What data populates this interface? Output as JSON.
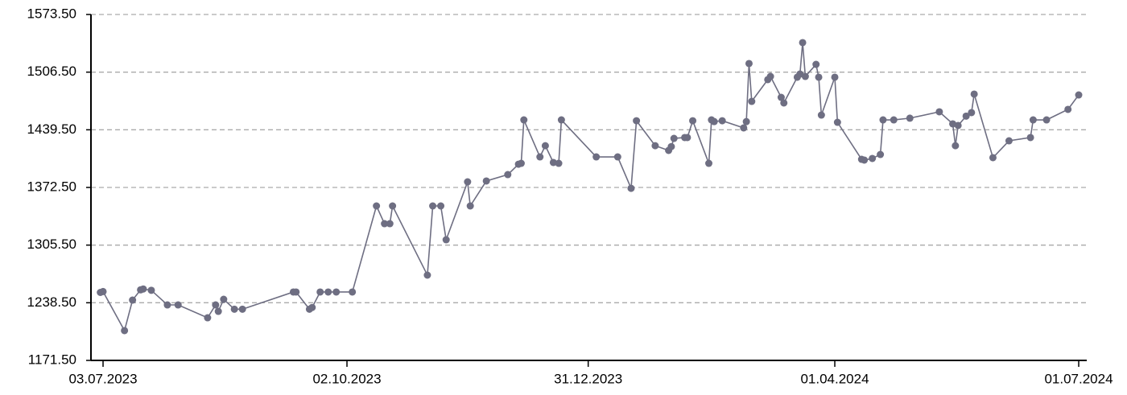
{
  "chart_data": {
    "type": "line",
    "color": "#6e6e82",
    "grid": true,
    "x": [
      "2023-07-02",
      "2023-07-03",
      "2023-07-11",
      "2023-07-14",
      "2023-07-17",
      "2023-07-18",
      "2023-07-21",
      "2023-07-27",
      "2023-07-31",
      "2023-08-11",
      "2023-08-14",
      "2023-08-15",
      "2023-08-17",
      "2023-08-21",
      "2023-08-24",
      "2023-09-12",
      "2023-09-13",
      "2023-09-18",
      "2023-09-19",
      "2023-09-22",
      "2023-09-25",
      "2023-09-28",
      "2023-10-04",
      "2023-10-13",
      "2023-10-16",
      "2023-10-18",
      "2023-10-19",
      "2023-11-01",
      "2023-11-03",
      "2023-11-06",
      "2023-11-08",
      "2023-11-16",
      "2023-11-17",
      "2023-11-23",
      "2023-12-01",
      "2023-12-05",
      "2023-12-06",
      "2023-12-07",
      "2023-12-13",
      "2023-12-15",
      "2023-12-18",
      "2023-12-20",
      "2023-12-21",
      "2024-01-03",
      "2024-01-11",
      "2024-01-16",
      "2024-01-18",
      "2024-01-25",
      "2024-01-30",
      "2024-01-31",
      "2024-02-01",
      "2024-02-05",
      "2024-02-06",
      "2024-02-08",
      "2024-02-14",
      "2024-02-15",
      "2024-02-16",
      "2024-02-19",
      "2024-02-27",
      "2024-02-28",
      "2024-02-29",
      "2024-03-01",
      "2024-03-07",
      "2024-03-08",
      "2024-03-12",
      "2024-03-13",
      "2024-03-18",
      "2024-03-19",
      "2024-03-20",
      "2024-03-21",
      "2024-03-25",
      "2024-03-26",
      "2024-03-27",
      "2024-04-01",
      "2024-04-02",
      "2024-04-11",
      "2024-04-12",
      "2024-04-15",
      "2024-04-18",
      "2024-04-19",
      "2024-04-23",
      "2024-04-29",
      "2024-05-10",
      "2024-05-15",
      "2024-05-16",
      "2024-05-17",
      "2024-05-20",
      "2024-05-22",
      "2024-05-23",
      "2024-05-30",
      "2024-06-05",
      "2024-06-13",
      "2024-06-14",
      "2024-06-19",
      "2024-06-27",
      "2024-07-01"
    ],
    "values": [
      1250.5,
      1251.5,
      1206.1,
      1241.6,
      1253.5,
      1254.5,
      1253,
      1236,
      1236,
      1221,
      1236,
      1228.5,
      1242.5,
      1231,
      1231,
      1251,
      1251,
      1231,
      1233,
      1251,
      1251,
      1251,
      1251,
      1351,
      1330.4,
      1330.4,
      1351,
      1270.6,
      1351,
      1351,
      1311.7,
      1379,
      1351,
      1380,
      1387.4,
      1399.5,
      1400.5,
      1451,
      1408,
      1421,
      1401.5,
      1400.5,
      1451,
      1408,
      1408,
      1371.5,
      1450,
      1421,
      1415.5,
      1420,
      1429.5,
      1430.5,
      1430.5,
      1450,
      1400.5,
      1451,
      1449,
      1450,
      1441.7,
      1449,
      1516.5,
      1472.5,
      1497.8,
      1501.5,
      1477.2,
      1470.7,
      1500.6,
      1504.3,
      1540.8,
      1501.5,
      1515.5,
      1500.6,
      1456.6,
      1500.6,
      1448.2,
      1405.2,
      1404.3,
      1406.2,
      1410.8,
      1451,
      1451,
      1453,
      1460.4,
      1446.4,
      1421,
      1444.5,
      1455.4,
      1459.5,
      1481,
      1407.1,
      1426.7,
      1430.5,
      1451,
      1451,
      1463.2,
      1480
    ],
    "xlim": [
      "2023-06-29",
      "2024-07-04"
    ],
    "xticks": [
      {
        "value": "2023-07-03",
        "label": "03.07.2023"
      },
      {
        "value": "2023-10-02",
        "label": "02.10.2023"
      },
      {
        "value": "2023-12-31",
        "label": "31.12.2023"
      },
      {
        "value": "2024-04-01",
        "label": "01.04.2024"
      },
      {
        "value": "2024-07-01",
        "label": "01.07.2024"
      }
    ],
    "ylim": [
      1171.5,
      1573.5
    ],
    "yticks": [
      {
        "value": 1171.5,
        "label": "1171.50"
      },
      {
        "value": 1238.5,
        "label": "1238.50"
      },
      {
        "value": 1305.5,
        "label": "1305.50"
      },
      {
        "value": 1372.5,
        "label": "1372.50"
      },
      {
        "value": 1439.5,
        "label": "1439.50"
      },
      {
        "value": 1506.5,
        "label": "1506.50"
      },
      {
        "value": 1573.5,
        "label": "1573.50"
      }
    ]
  }
}
